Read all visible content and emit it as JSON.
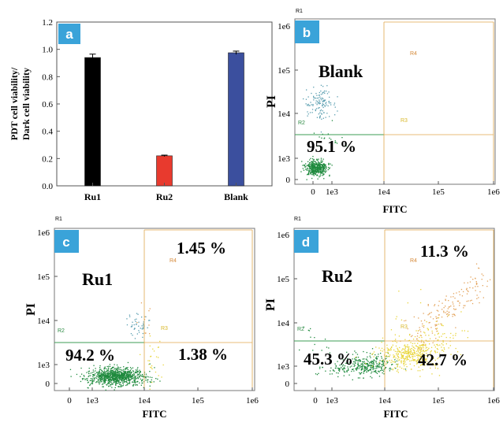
{
  "colors": {
    "ru1_bar": "#000000",
    "ru2_bar": "#e83a2e",
    "blank_bar": "#3b4f9e",
    "panel_badge": "#3aa3d9",
    "gate_line_green": "#3d9e55",
    "gate_line_orange": "#e0a74e",
    "dots_green": "#1f8a3e",
    "dots_blue": "#5a9eb0",
    "dots_yellow": "#e8d53a",
    "dots_orange": "#e3a25a",
    "label_R2": "#2e8b45",
    "label_R3": "#d8b82a",
    "label_R4": "#d58a3a"
  },
  "panel_a": {
    "letter": "a",
    "chart_data": {
      "type": "bar",
      "categories": [
        "Ru1",
        "Ru2",
        "Blank"
      ],
      "values": [
        0.94,
        0.22,
        0.975
      ],
      "errors": [
        0.025,
        0.005,
        0.012
      ],
      "ylabel_line1": "PDT cell viability/",
      "ylabel_line2": "Dark cell viability",
      "ylim": [
        0,
        1.2
      ],
      "yticks": [
        "0.0",
        "0.2",
        "0.4",
        "0.6",
        "0.8",
        "1.0",
        "1.2"
      ]
    }
  },
  "flow_common": {
    "xlabel": "FITC",
    "ylabel": "PI",
    "gate_name": "R1",
    "region_labels": [
      "R2",
      "R3",
      "R4"
    ],
    "yticks": [
      "0",
      "1e3",
      "1e4",
      "1e5",
      "1e6"
    ],
    "xticks_b": [
      "0",
      "1e3",
      "1e4",
      "1e5",
      "1e6"
    ],
    "xticks_cd": [
      "0",
      "1e3",
      "1e4",
      "1e5",
      "1e6"
    ]
  },
  "panel_b": {
    "letter": "b",
    "sample": "Blank",
    "quadrants": {
      "lower_left": "95.1 %"
    }
  },
  "panel_c": {
    "letter": "c",
    "sample": "Ru1",
    "quadrants": {
      "lower_left": "94.2 %",
      "upper_right": "1.45 %",
      "lower_right": "1.38 %"
    }
  },
  "panel_d": {
    "letter": "d",
    "sample": "Ru2",
    "quadrants": {
      "lower_left": "45.3 %",
      "upper_right": "11.3 %",
      "lower_right": "42.7 %"
    }
  }
}
